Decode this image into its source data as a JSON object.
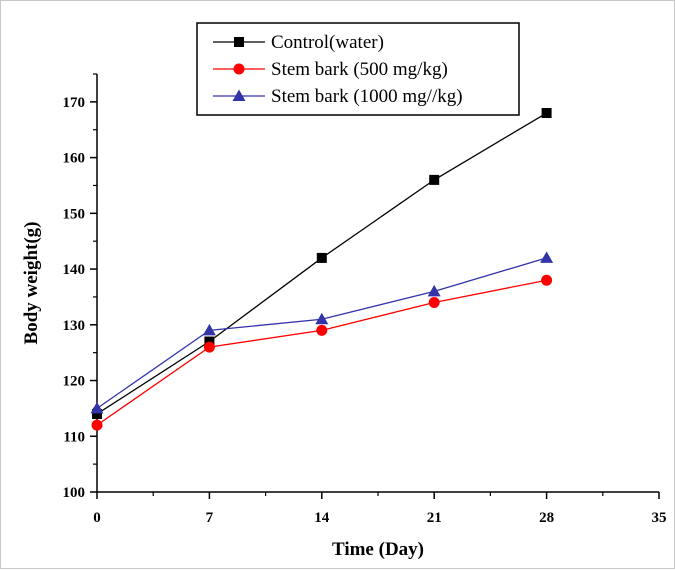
{
  "chart_data": {
    "type": "line",
    "xlabel": "Time (Day)",
    "ylabel": "Body weight(g)",
    "xlim": [
      0,
      35
    ],
    "ylim": [
      100,
      175
    ],
    "xticks": [
      0,
      7,
      14,
      21,
      28,
      35
    ],
    "yticks": [
      100,
      110,
      120,
      130,
      140,
      150,
      160,
      170
    ],
    "grid": false,
    "legend_position": "top-center",
    "x": [
      0,
      7,
      14,
      21,
      28
    ],
    "series": [
      {
        "name": "Control(water)",
        "values": [
          114,
          127,
          142,
          156,
          168
        ],
        "color": "#000000",
        "marker": "square"
      },
      {
        "name": "Stem bark (500 mg/kg)",
        "values": [
          112,
          126,
          129,
          134,
          138
        ],
        "color": "#ff0000",
        "marker": "circle"
      },
      {
        "name": "Stem bark (1000 mg//kg)",
        "values": [
          115,
          129,
          131,
          136,
          142
        ],
        "color": "#3333aa",
        "marker": "triangle"
      }
    ]
  }
}
